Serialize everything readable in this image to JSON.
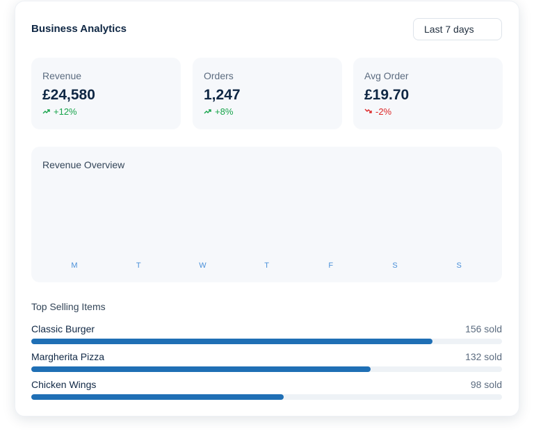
{
  "header": {
    "title": "Business Analytics",
    "range": "Last 7 days"
  },
  "stats": [
    {
      "label": "Revenue",
      "value": "£24,580",
      "change": "+12%",
      "color": "#16a34a"
    },
    {
      "label": "Orders",
      "value": "1,247",
      "change": "+8%",
      "color": "#16a34a"
    },
    {
      "label": "Avg Order",
      "value": "£19.70",
      "change": "-2%",
      "color": "#dc2626"
    }
  ],
  "overview": {
    "title": "Revenue Overview",
    "days": [
      "M",
      "T",
      "W",
      "T",
      "F",
      "S",
      "S"
    ]
  },
  "top_items": {
    "title": "Top Selling Items",
    "xlim": [
      0,
      183
    ],
    "color": "#1f6fb5",
    "items": [
      {
        "name": "Classic Burger",
        "value": 156,
        "value_label": "156 sold"
      },
      {
        "name": "Margherita Pizza",
        "value": 132,
        "value_label": "132 sold"
      },
      {
        "name": "Chicken Wings",
        "value": 98,
        "value_label": "98 sold"
      }
    ]
  }
}
